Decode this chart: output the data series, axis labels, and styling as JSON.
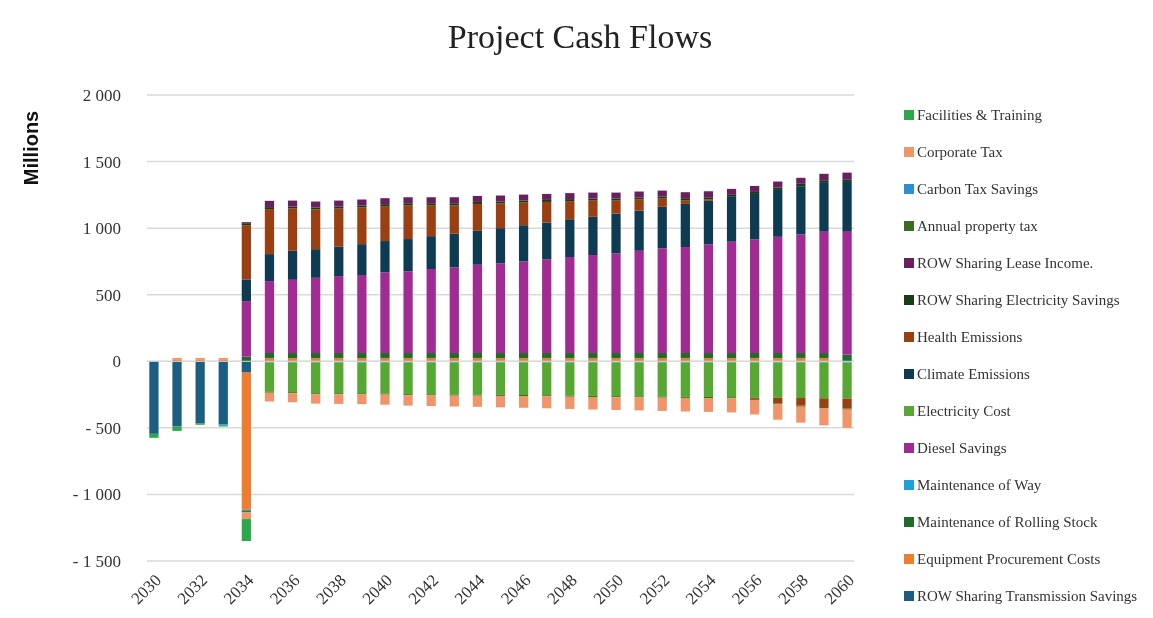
{
  "chart_data": {
    "type": "bar",
    "stacked": true,
    "title": "Project Cash Flows",
    "ylabel": "Millions",
    "categories": [
      "2030",
      null,
      "2032",
      null,
      "2034",
      null,
      "2036",
      null,
      "2038",
      null,
      "2040",
      null,
      "2042",
      null,
      "2044",
      null,
      "2046",
      null,
      "2048",
      null,
      "2050",
      null,
      "2052",
      null,
      "2054",
      null,
      "2056",
      null,
      "2058",
      null,
      "2060"
    ],
    "ylim": [
      -1500,
      2000
    ],
    "yticks": [
      {
        "value": -1500,
        "label": "- 1 500"
      },
      {
        "value": -1000,
        "label": "- 1 000"
      },
      {
        "value": -500,
        "label": "- 500"
      },
      0,
      500,
      {
        "value": 1000,
        "label": "1 000"
      },
      {
        "value": 1500,
        "label": "1 500"
      },
      {
        "value": 2000,
        "label": "2 000"
      }
    ],
    "grid": "y",
    "legend": "right",
    "series": [
      {
        "name": "ROW Sharing Transmission Savings",
        "color": "#1b5e82",
        "values": [
          -545,
          -490,
          -465,
          -472,
          -85,
          0,
          0,
          0,
          0,
          0,
          0,
          0,
          0,
          0,
          0,
          0,
          0,
          0,
          0,
          0,
          0,
          0,
          0,
          0,
          0,
          0,
          0,
          0,
          0,
          0,
          0
        ]
      },
      {
        "name": "Equipment Procurement Costs",
        "color": "#ed7d31",
        "values": [
          0,
          15,
          15,
          15,
          -1030,
          25,
          25,
          25,
          25,
          25,
          25,
          25,
          25,
          25,
          25,
          25,
          25,
          25,
          25,
          25,
          25,
          25,
          25,
          25,
          25,
          25,
          25,
          25,
          25,
          25,
          0
        ]
      },
      {
        "name": "Maintenance of Rolling Stock",
        "color": "#1e6b2a",
        "values": [
          0,
          0,
          0,
          0,
          35,
          37,
          37,
          37,
          37,
          37,
          37,
          37,
          37,
          37,
          37,
          37,
          37,
          37,
          37,
          37,
          37,
          37,
          37,
          37,
          37,
          37,
          37,
          37,
          37,
          37,
          50
        ]
      },
      {
        "name": "Maintenance of Way",
        "color": "#1fa0d8",
        "values": [
          0,
          0,
          0,
          -8,
          -10,
          -10,
          -10,
          -10,
          -10,
          -10,
          -10,
          -10,
          -10,
          -10,
          -10,
          -10,
          -10,
          -10,
          -10,
          -10,
          -10,
          -10,
          -10,
          -10,
          -10,
          -10,
          -10,
          -10,
          -10,
          -10,
          -10
        ]
      },
      {
        "name": "Diesel Savings",
        "color": "#a02b93",
        "values": [
          0,
          0,
          0,
          0,
          417,
          540,
          550,
          565,
          578,
          586,
          606,
          613,
          631,
          643,
          663,
          673,
          688,
          703,
          721,
          736,
          748,
          768,
          786,
          796,
          816,
          836,
          853,
          873,
          891,
          911,
          923
        ]
      },
      {
        "name": "Electricity Cost",
        "color": "#57a832",
        "values": [
          0,
          0,
          0,
          0,
          0,
          -218,
          -222,
          -230,
          -230,
          -230,
          -232,
          -237,
          -238,
          -240,
          -240,
          -242,
          -243,
          -245,
          -248,
          -250,
          -252,
          -253,
          -255,
          -257,
          -258,
          -260,
          -262,
          -264,
          -266,
          -268,
          -270
        ]
      },
      {
        "name": "Climate Emissions",
        "color": "#0e3a52",
        "values": [
          0,
          0,
          0,
          0,
          163,
          203,
          218,
          215,
          220,
          232,
          235,
          243,
          247,
          253,
          255,
          265,
          272,
          277,
          284,
          287,
          300,
          302,
          312,
          324,
          327,
          337,
          342,
          352,
          362,
          367,
          374
        ]
      },
      {
        "name": "Health Emissions",
        "color": "#9a3f12",
        "values": [
          0,
          0,
          0,
          0,
          407,
          338,
          317,
          298,
          287,
          275,
          262,
          254,
          232,
          214,
          202,
          185,
          170,
          155,
          136,
          122,
          97,
          83,
          62,
          28,
          12,
          0,
          -10,
          -42,
          -57,
          -65,
          -75
        ]
      },
      {
        "name": "ROW Sharing Electricity Savings",
        "color": "#173d17",
        "values": [
          0,
          0,
          0,
          0,
          15,
          15,
          15,
          15,
          15,
          15,
          15,
          15,
          15,
          15,
          15,
          15,
          15,
          15,
          15,
          15,
          15,
          15,
          15,
          15,
          15,
          15,
          15,
          18,
          18,
          20,
          20
        ]
      },
      {
        "name": "ROW Sharing Lease Income.",
        "color": "#6a1f5e",
        "values": [
          0,
          0,
          0,
          0,
          8,
          47,
          45,
          45,
          45,
          45,
          45,
          45,
          45,
          45,
          45,
          45,
          45,
          45,
          45,
          45,
          45,
          45,
          45,
          45,
          45,
          45,
          45,
          45,
          45,
          48,
          50
        ]
      },
      {
        "name": "Annual property tax",
        "color": "#3a6e1f",
        "values": [
          0,
          0,
          0,
          0,
          -10,
          -8,
          -8,
          -8,
          -8,
          -8,
          -8,
          -8,
          -8,
          -8,
          -8,
          -8,
          -8,
          -8,
          -8,
          -8,
          -8,
          -8,
          -8,
          -8,
          -8,
          -8,
          -8,
          -8,
          -8,
          -8,
          -8
        ]
      },
      {
        "name": "Carbon Tax Savings",
        "color": "#2e8fcf",
        "values": [
          0,
          0,
          0,
          0,
          0,
          0,
          0,
          0,
          0,
          0,
          0,
          0,
          0,
          0,
          0,
          0,
          0,
          0,
          0,
          0,
          0,
          0,
          0,
          0,
          0,
          0,
          0,
          0,
          0,
          0,
          0
        ]
      },
      {
        "name": "Corporate Tax",
        "color": "#f0956a",
        "values": [
          0,
          10,
          10,
          10,
          -50,
          -66,
          -68,
          -70,
          -72,
          -74,
          -76,
          -78,
          -80,
          -82,
          -84,
          -86,
          -88,
          -90,
          -92,
          -94,
          -96,
          -98,
          -100,
          -102,
          -104,
          -106,
          -110,
          -115,
          -120,
          -130,
          -137
        ]
      },
      {
        "name": "Facilities & Training",
        "color": "#2ca84a",
        "values": [
          -30,
          -33,
          -12,
          -10,
          -165,
          0,
          0,
          0,
          0,
          0,
          0,
          0,
          0,
          0,
          0,
          0,
          0,
          0,
          0,
          0,
          0,
          0,
          0,
          0,
          0,
          0,
          0,
          0,
          0,
          0,
          0
        ]
      }
    ]
  }
}
